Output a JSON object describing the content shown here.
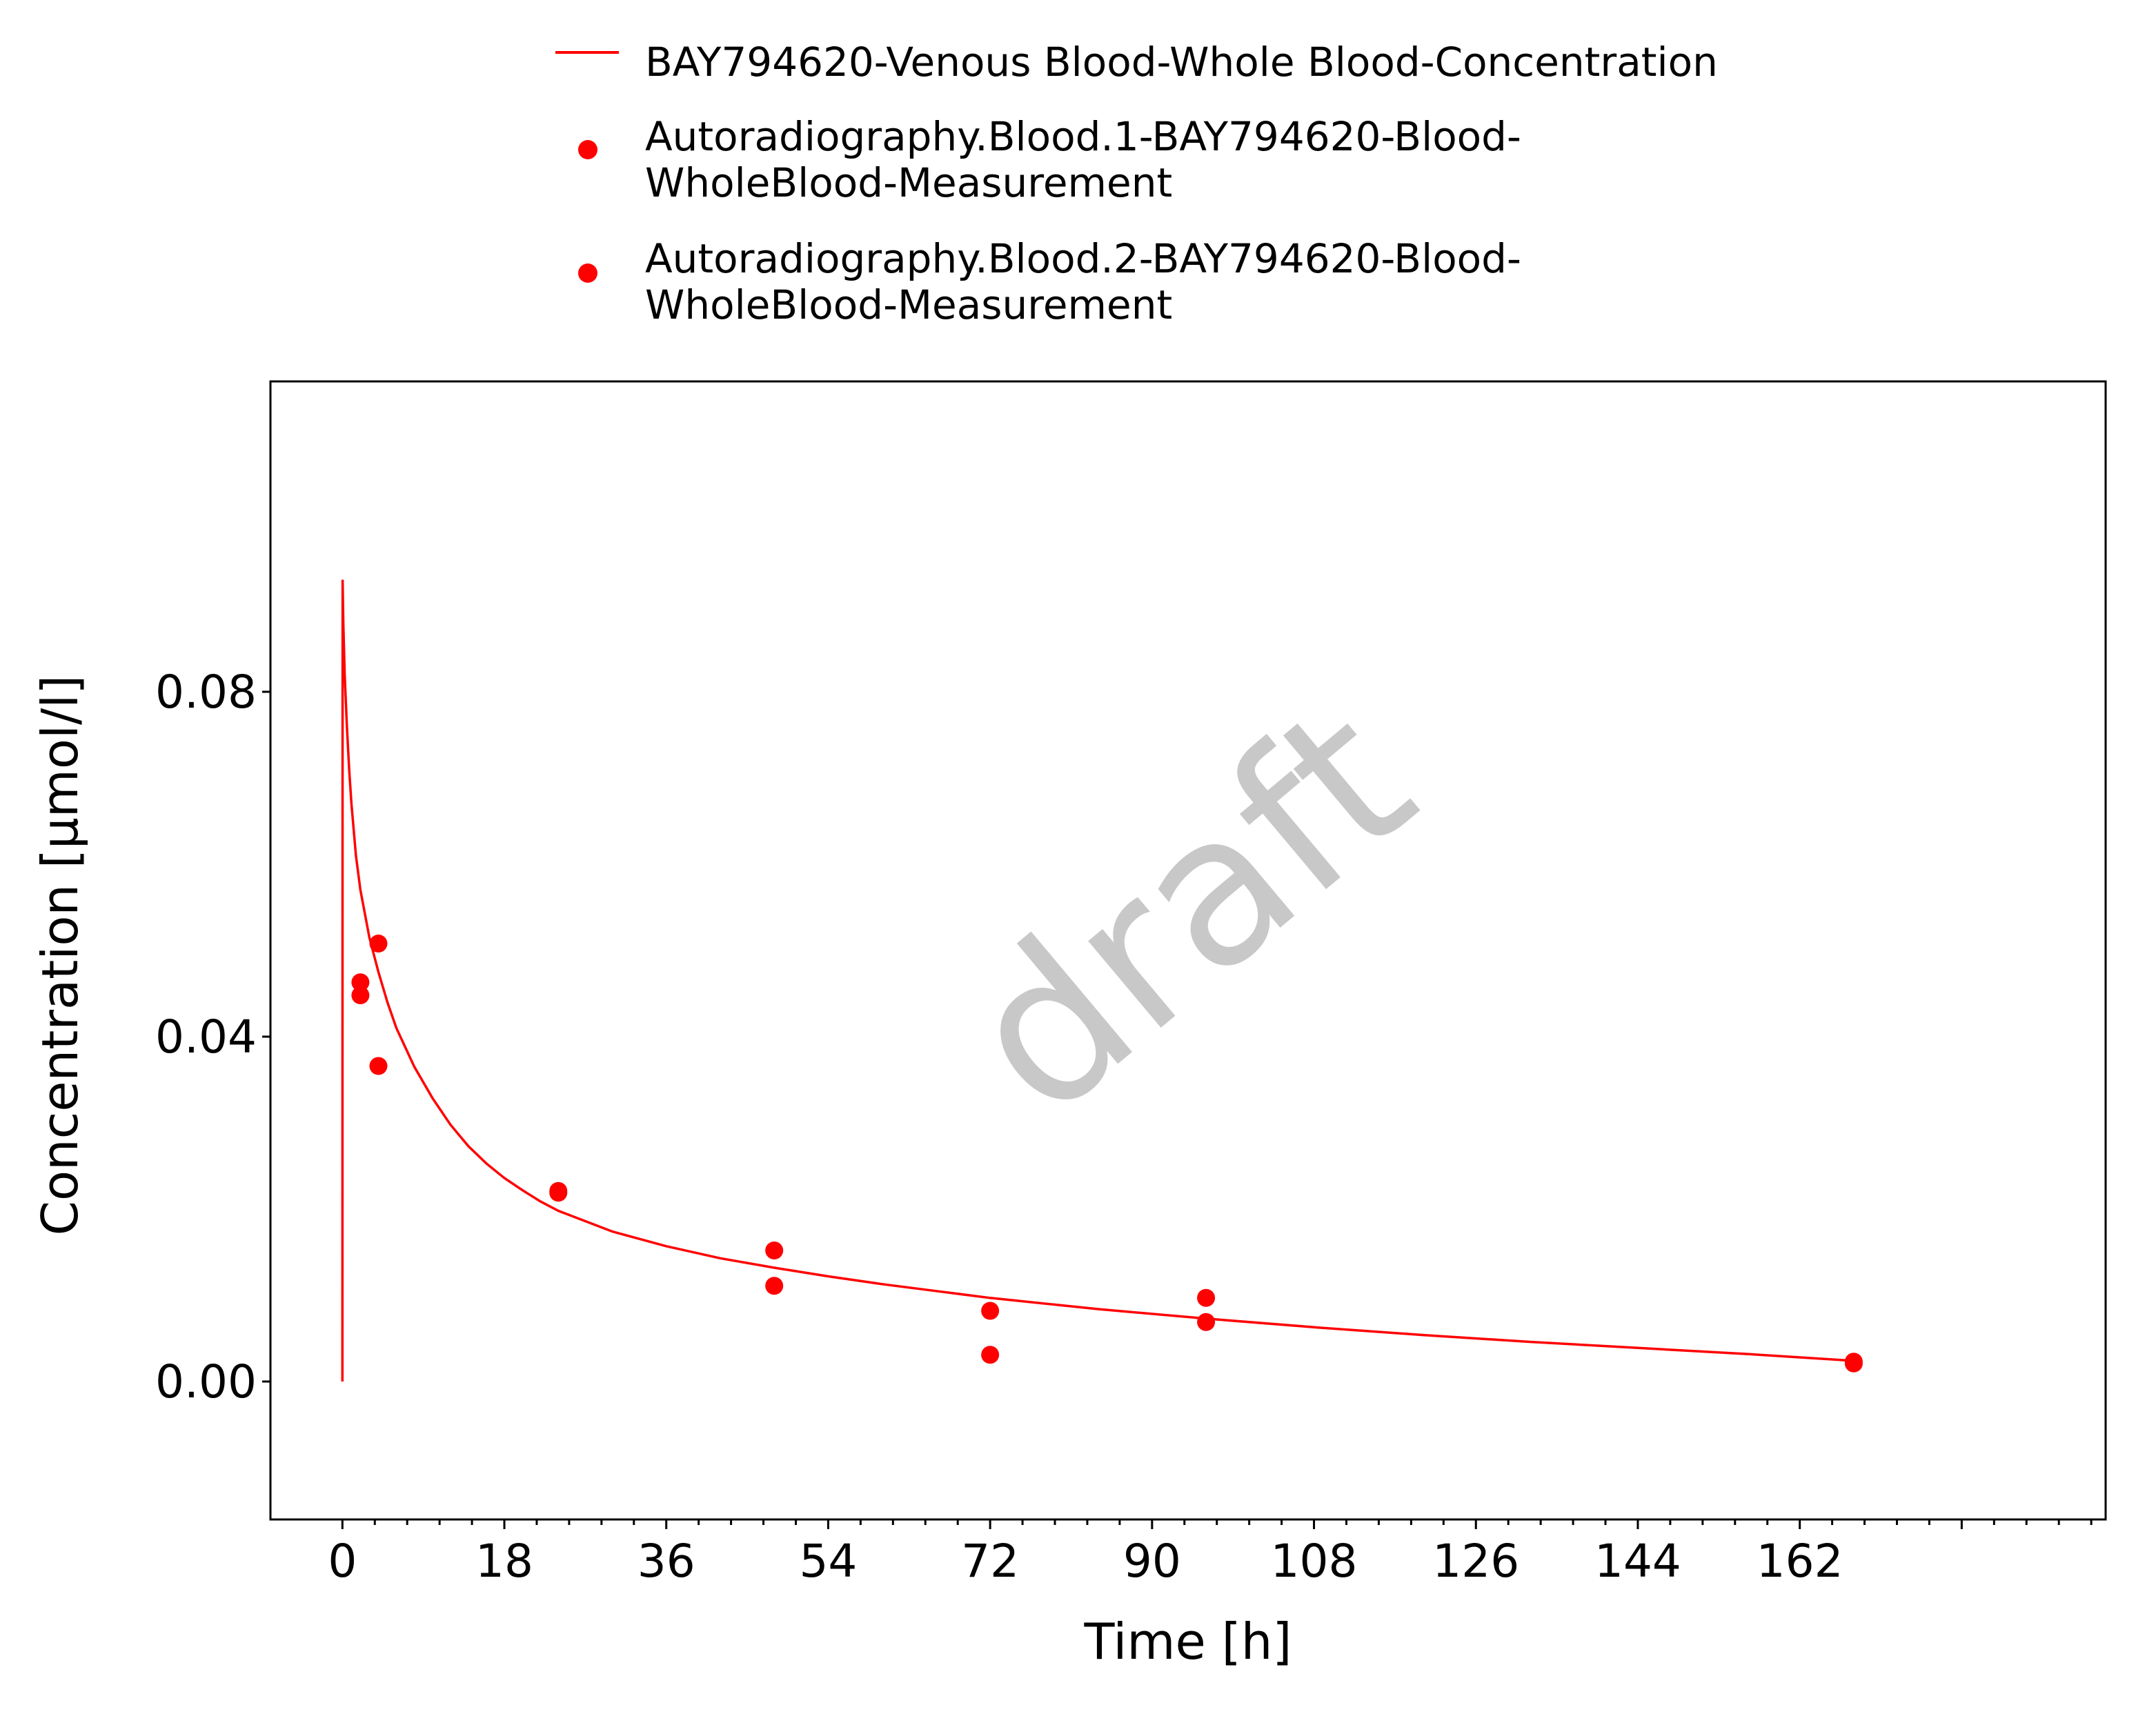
{
  "chart_data": {
    "type": "line",
    "xlabel": "Time [h]",
    "ylabel": "Concentration [µmol/l]",
    "watermark": "draft",
    "xlim": [
      -8,
      196
    ],
    "ylim": [
      -0.016,
      0.116
    ],
    "x_ticks": [
      0,
      18,
      36,
      54,
      72,
      90,
      108,
      126,
      144,
      162
    ],
    "x_tick_labels": [
      "0",
      "18",
      "36",
      "54",
      "72",
      "90",
      "108",
      "126",
      "144",
      "162"
    ],
    "y_ticks": [
      0.0,
      0.04,
      0.08
    ],
    "y_tick_labels": [
      "0.00",
      "0.04",
      "0.08"
    ],
    "grid": false,
    "legend_position": "top",
    "legend": [
      {
        "label": "BAY794620-Venous Blood-Whole Blood-Concentration",
        "kind": "line",
        "color": "#ff0000"
      },
      {
        "label_lines": [
          "Autoradiography.Blood.1-BAY794620-Blood-",
          "WholeBlood-Measurement"
        ],
        "kind": "marker",
        "color": "#ff0000"
      },
      {
        "label_lines": [
          "Autoradiography.Blood.2-BAY794620-Blood-",
          "WholeBlood-Measurement"
        ],
        "kind": "marker",
        "color": "#ff0000"
      }
    ],
    "series": [
      {
        "name": "BAY794620-Venous Blood-Whole Blood-Concentration",
        "type": "line",
        "color": "#ff0000",
        "x": [
          0,
          0.02,
          0.05,
          0.1,
          0.25,
          0.5,
          0.75,
          1,
          1.5,
          2,
          3,
          4,
          5,
          6,
          8,
          10,
          12,
          14,
          16,
          18,
          20,
          22,
          24,
          30,
          36,
          42,
          48,
          54,
          60,
          66,
          72,
          84,
          96,
          108,
          120,
          132,
          144,
          156,
          168
        ],
        "y": [
          0.0,
          0.093,
          0.091,
          0.088,
          0.082,
          0.076,
          0.071,
          0.067,
          0.061,
          0.057,
          0.0515,
          0.0475,
          0.044,
          0.041,
          0.0365,
          0.0329,
          0.0298,
          0.0273,
          0.0253,
          0.0236,
          0.0222,
          0.0209,
          0.0198,
          0.0174,
          0.0157,
          0.0143,
          0.0132,
          0.0122,
          0.0113,
          0.0105,
          0.0097,
          0.0084,
          0.0073,
          0.0063,
          0.0054,
          0.0046,
          0.0039,
          0.0032,
          0.0024
        ]
      },
      {
        "name": "Autoradiography.Blood.1-BAY794620-Blood-WholeBlood-Measurement",
        "type": "scatter",
        "color": "#ff0000",
        "x": [
          2,
          4,
          24,
          48,
          72,
          96,
          168
        ],
        "y": [
          0.0463,
          0.0508,
          0.0219,
          0.0152,
          0.0082,
          0.0097,
          0.0021
        ]
      },
      {
        "name": "Autoradiography.Blood.2-BAY794620-Blood-WholeBlood-Measurement",
        "type": "scatter",
        "color": "#ff0000",
        "x": [
          2,
          4,
          24,
          48,
          72,
          96,
          168
        ],
        "y": [
          0.0448,
          0.0366,
          0.0221,
          0.0111,
          0.0031,
          0.0069,
          0.0023
        ]
      }
    ]
  }
}
